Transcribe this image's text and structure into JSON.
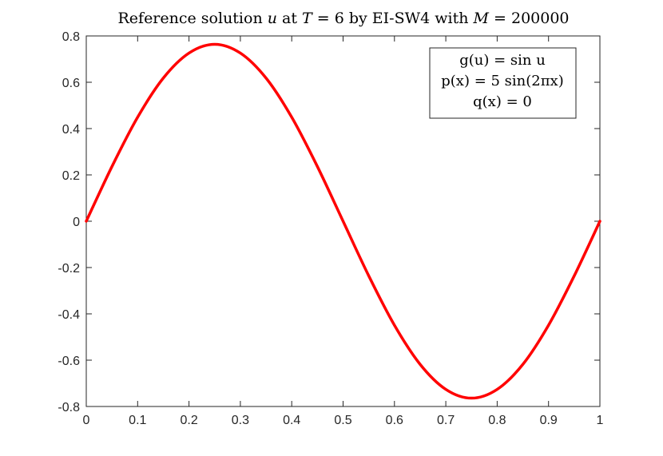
{
  "chart_data": {
    "type": "line",
    "title": {
      "pre": "Reference solution ",
      "var_u": "u",
      "at": " at ",
      "var_T": "T",
      "eq_T": " = 6 by EI-SW4 with ",
      "var_M": "M",
      "eq_M": " = 200000"
    },
    "xlabel": "",
    "ylabel": "",
    "xlim": [
      0,
      1
    ],
    "ylim": [
      -0.8,
      0.8
    ],
    "x_ticks": [
      "0",
      "0.1",
      "0.2",
      "0.3",
      "0.4",
      "0.5",
      "0.6",
      "0.7",
      "0.8",
      "0.9",
      "1"
    ],
    "y_ticks": [
      "0.8",
      "0.6",
      "0.4",
      "0.2",
      "0",
      "-0.2",
      "-0.4",
      "-0.6",
      "-0.8"
    ],
    "grid": false,
    "annotation": {
      "line1": "g(u) = sin u",
      "line2": "p(x) = 5 sin(2πx)",
      "line3": "q(x) = 0",
      "placement": "top-right"
    },
    "series": [
      {
        "color": "#ff0000",
        "x": [
          0,
          0.05,
          0.1,
          0.15,
          0.2,
          0.25,
          0.3,
          0.35,
          0.4,
          0.45,
          0.5,
          0.55,
          0.6,
          0.65,
          0.7,
          0.75,
          0.8,
          0.85,
          0.9,
          0.95,
          1.0
        ],
        "y": [
          0,
          0.236,
          0.449,
          0.618,
          0.726,
          0.764,
          0.726,
          0.618,
          0.449,
          0.236,
          0,
          -0.236,
          -0.449,
          -0.618,
          -0.726,
          -0.764,
          -0.726,
          -0.618,
          -0.449,
          -0.236,
          0
        ]
      }
    ]
  }
}
